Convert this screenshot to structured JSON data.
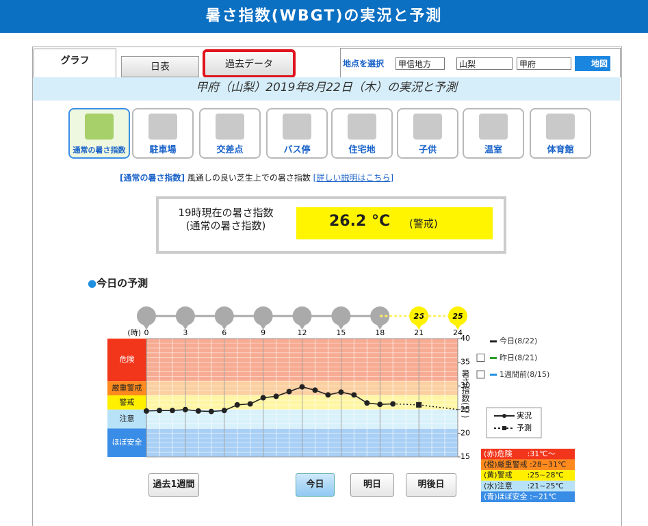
{
  "header": {
    "title": "暑さ指数(WBGT)の実況と予測"
  },
  "tabs": [
    "グラフ",
    "日表",
    "過去データ"
  ],
  "location_selector": {
    "label": "地点を選択",
    "region": "甲信地方",
    "prefecture": "山梨",
    "point": "甲府",
    "map_button": "地図"
  },
  "subtitle": "甲府（山梨）2019年8月22日（木）の実況と予測",
  "index_types": [
    "通常の暑さ指数",
    "駐車場",
    "交差点",
    "バス停",
    "住宅地",
    "子供",
    "温室",
    "体育館"
  ],
  "description": {
    "name": "[通常の暑さ指数]",
    "text": "風通しの良い芝生上での暑さ指数",
    "link": "[詳しい説明はこちら]"
  },
  "current": {
    "label_line1": "19時現在の暑さ指数",
    "label_line2": "(通常の暑さ指数)",
    "value": 26.2,
    "unit": "°C",
    "level": "(警戒)"
  },
  "forecast_title": "今日の予測",
  "chart": {
    "type": "line",
    "x_unit_label": "(時)",
    "y_label": "暑さ指数(℃)",
    "xlim": [
      0,
      24
    ],
    "xticks": [
      0,
      3,
      6,
      9,
      12,
      15,
      18,
      21,
      24
    ],
    "ylim": [
      15,
      40
    ],
    "yticks": [
      15,
      20,
      25,
      30,
      35,
      40
    ],
    "series": [
      {
        "name": "実況",
        "color": "#222222",
        "x": [
          0,
          1,
          2,
          3,
          4,
          5,
          6,
          7,
          8,
          9,
          10,
          11,
          12,
          13,
          14,
          15,
          16,
          17,
          18,
          19
        ],
        "values": [
          24.7,
          24.8,
          24.8,
          25.0,
          24.7,
          24.6,
          24.8,
          26.0,
          26.2,
          27.5,
          27.8,
          28.8,
          29.8,
          29.1,
          28.1,
          28.7,
          28.1,
          26.4,
          26.1,
          26.2
        ]
      },
      {
        "name": "予測",
        "color": "#222222",
        "dashed": true,
        "x": [
          21,
          24
        ],
        "values": [
          26,
          25
        ]
      }
    ],
    "day_legend": [
      {
        "name": "今日(8/22)",
        "color": "#222222"
      },
      {
        "name": "昨日(8/21)",
        "color": "#2ca02c"
      },
      {
        "name": "1週間前(8/15)",
        "color": "#1f8fe0"
      }
    ],
    "zones": [
      {
        "name": "危険",
        "legend": "(赤)危険　　:31℃～",
        "min": 31,
        "color": "#f2361b",
        "fill": "#f7ab92"
      },
      {
        "name": "厳重警戒",
        "legend": "(橙)厳重警戒 :28~31℃",
        "min": 28,
        "color": "#ff8a1e",
        "fill": "#fbcf9f"
      },
      {
        "name": "警戒",
        "legend": "(黄)警戒　　:25~28℃",
        "min": 25,
        "color": "#fff000",
        "fill": "#fff6a3"
      },
      {
        "name": "注意",
        "legend": "(水)注意　　:21~25℃",
        "min": 21,
        "color": "#b8e2f8",
        "fill": "#d9f1fb"
      },
      {
        "name": "ほぼ安全",
        "legend": "(青)ほぼ安全 :~21℃",
        "min": null,
        "color": "#3a8de6",
        "fill": "#a8cff5"
      }
    ]
  },
  "day_buttons": [
    "過去1週間",
    "今日",
    "明日",
    "明後日"
  ]
}
